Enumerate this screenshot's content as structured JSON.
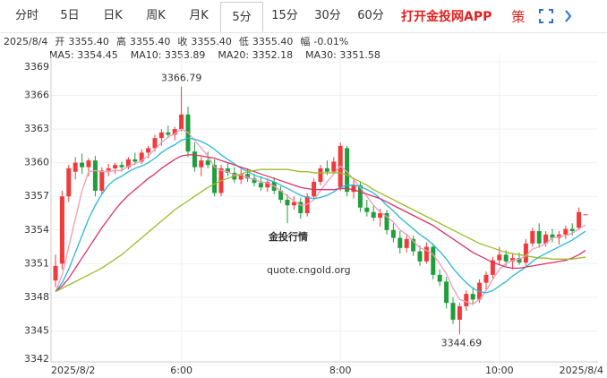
{
  "tabs": [
    "分时",
    "5日",
    "日K",
    "周K",
    "月K",
    "5分",
    "15分",
    "30分",
    "60分"
  ],
  "selected_tab": 5,
  "app_link": "打开金投网APP",
  "strategy": "策",
  "info": {
    "date": "2025/8/4",
    "items": [
      {
        "label": "开",
        "value": "3355.40"
      },
      {
        "label": "高",
        "value": "3355.40"
      },
      {
        "label": "收",
        "value": "3355.40"
      },
      {
        "label": "低",
        "value": "3355.40"
      },
      {
        "label": "幅",
        "value": "-0.01%"
      }
    ]
  },
  "watermark": {
    "brand": "金投行情",
    "url": "quote.cngold.org"
  },
  "chart_data": {
    "type": "candlestick",
    "categories": [
      "2025/8/2",
      null,
      null,
      null,
      null,
      null,
      null,
      null,
      null,
      null,
      null,
      null,
      null,
      null,
      null,
      null,
      null,
      null,
      null,
      "6:00",
      null,
      null,
      null,
      null,
      null,
      null,
      null,
      null,
      null,
      null,
      null,
      null,
      null,
      null,
      null,
      null,
      null,
      null,
      null,
      null,
      null,
      null,
      null,
      "8:00",
      null,
      null,
      null,
      null,
      null,
      null,
      null,
      null,
      null,
      null,
      null,
      null,
      null,
      null,
      null,
      null,
      null,
      null,
      null,
      null,
      null,
      null,
      null,
      "10:00",
      null,
      null,
      null,
      null,
      null,
      null,
      null,
      null,
      null,
      null,
      null,
      null,
      "2025/8/4"
    ],
    "open": [
      3349.5,
      3351,
      3357,
      3359.2,
      3360,
      3359.6,
      3360.2,
      3357.5,
      3359.3,
      3359.5,
      3359.8,
      3359.6,
      3360.3,
      3360.1,
      3360.9,
      3361.3,
      3362.2,
      3362.7,
      3362.5,
      3363,
      3364.3,
      3361,
      3359.6,
      3360.2,
      3359.8,
      3357.3,
      3359.5,
      3359.1,
      3358.5,
      3359,
      3358.6,
      3358.2,
      3357.8,
      3358.3,
      3357.5,
      3356.7,
      3356.2,
      3356.5,
      3355.5,
      3357,
      3358.3,
      3359.5,
      3359.2,
      3357.8,
      3361.3,
      3357.4,
      3358,
      3356,
      3355.6,
      3355.1,
      3355.5,
      3354,
      3353.3,
      3352.4,
      3353.2,
      3352.1,
      3351.2,
      3352.5,
      3350,
      3349.4,
      3347.5,
      3346,
      3347.2,
      3348.3,
      3347.8,
      3349.3,
      3350,
      3351.3,
      3351.8,
      3351.2,
      3351.5,
      3351.1,
      3352.8,
      3353.9,
      3352.8,
      3353.6,
      3353.3,
      3353.6,
      3354.1,
      3354.2,
      3355.4
    ],
    "high": [
      3351.8,
      3357.5,
      3359.8,
      3360.5,
      3360.8,
      3360.4,
      3360.6,
      3359.6,
      3359.9,
      3360,
      3360.1,
      3360.5,
      3360.9,
      3361.2,
      3361.5,
      3362.5,
      3363,
      3363.3,
      3363.2,
      3366.79,
      3365,
      3361.8,
      3360.5,
      3361,
      3360.3,
      3359.8,
      3360,
      3359.6,
      3359.4,
      3359.5,
      3359,
      3358.8,
      3358.6,
      3358.7,
      3357.9,
      3357.2,
      3357,
      3356.9,
      3357.3,
      3358.6,
      3359.8,
      3360.2,
      3360.5,
      3361.8,
      3361.5,
      3358.5,
      3358.3,
      3356.7,
      3356.2,
      3355.9,
      3355.8,
      3354.6,
      3353.9,
      3353.6,
      3353.5,
      3352.6,
      3352.9,
      3352.8,
      3350.5,
      3349.8,
      3348,
      3347.5,
      3348.6,
      3348.9,
      3349.6,
      3350.3,
      3351.6,
      3352.5,
      3352.2,
      3351.9,
      3352,
      3353.2,
      3354.2,
      3354.6,
      3353.9,
      3354.1,
      3353.9,
      3354.4,
      3354.6,
      3356,
      3355.4
    ],
    "low": [
      3348.9,
      3350.5,
      3356.5,
      3358.5,
      3359,
      3358.8,
      3357,
      3357.2,
      3358.8,
      3359,
      3359.2,
      3359.4,
      3359.8,
      3359.9,
      3360.4,
      3361,
      3361.5,
      3362.2,
      3362,
      3362.8,
      3360.5,
      3359.2,
      3358.8,
      3359.5,
      3357,
      3357,
      3358.8,
      3358.2,
      3358.1,
      3358.3,
      3357.9,
      3357.5,
      3357.4,
      3357.2,
      3356.4,
      3354.6,
      3355.8,
      3355,
      3355.2,
      3356.8,
      3358,
      3358.9,
      3359,
      3357.5,
      3357,
      3356.8,
      3355.6,
      3355.2,
      3354.8,
      3354.3,
      3353.6,
      3352.9,
      3351.9,
      3352,
      3351.7,
      3350.8,
      3351,
      3349.6,
      3349,
      3347,
      3345.6,
      3344.69,
      3346.8,
      3347.3,
      3347.5,
      3348.6,
      3349.7,
      3350.9,
      3350.8,
      3350.5,
      3350.9,
      3350.8,
      3352.5,
      3352.4,
      3352.5,
      3352.9,
      3352.7,
      3353.2,
      3353.5,
      3354,
      3355.4
    ],
    "close": [
      3350.8,
      3357,
      3359.5,
      3360,
      3359.6,
      3360.2,
      3357.5,
      3359.3,
      3359.5,
      3359.8,
      3359.6,
      3360.3,
      3360.1,
      3360.9,
      3361.3,
      3362.2,
      3362.7,
      3362.5,
      3363,
      3364.3,
      3361,
      3359.6,
      3360.2,
      3359.8,
      3357.3,
      3359.5,
      3359.1,
      3358.5,
      3359,
      3358.6,
      3358.2,
      3357.8,
      3358.3,
      3357.5,
      3356.7,
      3356.2,
      3356.5,
      3355.5,
      3357,
      3358.3,
      3359.5,
      3359.2,
      3360.1,
      3361.5,
      3357.4,
      3358,
      3356,
      3355.6,
      3355.1,
      3355.5,
      3354,
      3353.3,
      3352.4,
      3353.2,
      3352.1,
      3351.2,
      3352.5,
      3350,
      3349.4,
      3347.5,
      3346,
      3347.2,
      3348.3,
      3347.8,
      3349.3,
      3350,
      3351.3,
      3351.8,
      3351.2,
      3351.5,
      3351.1,
      3352.8,
      3353.9,
      3352.8,
      3353.6,
      3353.3,
      3353.6,
      3354.1,
      3353.9,
      3355.6,
      3355.4
    ],
    "up_color": "#ef3b3b",
    "down_color": "#1f9e3c",
    "series": [
      {
        "name": "MA5: 3354.45",
        "color": "#f29bb8",
        "values": [
          3348.5,
          3350,
          3352.5,
          3355,
          3357.5,
          3359.2,
          3359.3,
          3359.2,
          3359.2,
          3359.3,
          3359.3,
          3359.7,
          3359.9,
          3360.2,
          3360.6,
          3361.2,
          3361.8,
          3362.3,
          3362.6,
          3363,
          3362.7,
          3362,
          3361.3,
          3360.6,
          3359.6,
          3359.3,
          3359.2,
          3358.9,
          3358.9,
          3358.7,
          3358.5,
          3358.3,
          3358.2,
          3357.9,
          3357.5,
          3357,
          3356.6,
          3356.2,
          3356.3,
          3356.7,
          3357.5,
          3358.3,
          3359,
          3359.7,
          3359.2,
          3358.5,
          3357.8,
          3357,
          3356.2,
          3355.6,
          3355.2,
          3354.7,
          3354,
          3353.6,
          3353,
          3352.4,
          3352.2,
          3351.8,
          3351,
          3350.1,
          3348.8,
          3347.8,
          3347.6,
          3347.4,
          3347.8,
          3348.6,
          3349.6,
          3350.5,
          3351,
          3351.3,
          3351.4,
          3351.7,
          3352.3,
          3352.5,
          3352.8,
          3353.3,
          3353.4,
          3353.5,
          3353.7,
          3354.1,
          3354.45
        ]
      },
      {
        "name": "MA10: 3353.89",
        "color": "#29b6d8",
        "values": [
          3348.5,
          3349.3,
          3350.5,
          3352,
          3353.5,
          3355,
          3356.2,
          3357.2,
          3358,
          3358.5,
          3358.8,
          3359.2,
          3359.5,
          3359.7,
          3360,
          3360.4,
          3360.9,
          3361.3,
          3361.6,
          3362,
          3362.2,
          3362.1,
          3361.9,
          3361.6,
          3361.2,
          3360.7,
          3360.3,
          3359.9,
          3359.5,
          3359.2,
          3358.9,
          3358.7,
          3358.5,
          3358.3,
          3358,
          3357.7,
          3357.4,
          3357.1,
          3356.9,
          3356.8,
          3356.9,
          3357.1,
          3357.4,
          3357.8,
          3358,
          3358,
          3357.9,
          3357.6,
          3357.3,
          3356.8,
          3356.2,
          3355.7,
          3355.1,
          3354.6,
          3354.1,
          3353.6,
          3353.2,
          3352.7,
          3352.1,
          3351.4,
          3350.6,
          3349.9,
          3349.3,
          3348.8,
          3348.5,
          3348.4,
          3348.6,
          3349,
          3349.4,
          3349.9,
          3350.3,
          3350.7,
          3351.2,
          3351.6,
          3351.9,
          3352.2,
          3352.5,
          3352.8,
          3353.1,
          3353.5,
          3353.89
        ]
      },
      {
        "name": "MA20: 3352.18",
        "color": "#d8336a",
        "values": [
          3348.5,
          3349,
          3349.7,
          3350.6,
          3351.5,
          3352.4,
          3353.3,
          3354.2,
          3355,
          3355.8,
          3356.5,
          3357.1,
          3357.6,
          3358.1,
          3358.6,
          3359,
          3359.5,
          3359.9,
          3360.3,
          3360.6,
          3360.7,
          3360.7,
          3360.6,
          3360.5,
          3360.4,
          3360.2,
          3360,
          3359.8,
          3359.6,
          3359.4,
          3359.2,
          3359,
          3358.8,
          3358.6,
          3358.4,
          3358.2,
          3358,
          3357.8,
          3357.7,
          3357.6,
          3357.6,
          3357.6,
          3357.6,
          3357.7,
          3357.7,
          3357.6,
          3357.4,
          3357.2,
          3357,
          3356.8,
          3356.5,
          3356.2,
          3355.9,
          3355.6,
          3355.3,
          3355,
          3354.7,
          3354.4,
          3354,
          3353.6,
          3353.2,
          3352.8,
          3352.4,
          3352,
          3351.7,
          3351.4,
          3351.1,
          3350.9,
          3350.7,
          3350.6,
          3350.6,
          3350.7,
          3350.8,
          3350.9,
          3351,
          3351.1,
          3351.2,
          3351.3,
          3351.5,
          3351.8,
          3352.18
        ]
      },
      {
        "name": "MA30: 3351.58",
        "color": "#9dbb2c",
        "values": [
          3348.5,
          3348.8,
          3349.1,
          3349.4,
          3349.7,
          3350,
          3350.3,
          3350.6,
          3351,
          3351.4,
          3351.8,
          3352.3,
          3352.8,
          3353.3,
          3353.8,
          3354.3,
          3354.8,
          3355.3,
          3355.8,
          3356.2,
          3356.6,
          3357,
          3357.4,
          3357.8,
          3358.1,
          3358.4,
          3358.6,
          3358.8,
          3359,
          3359.2,
          3359.3,
          3359.4,
          3359.4,
          3359.4,
          3359.4,
          3359.4,
          3359.3,
          3359.2,
          3359.2,
          3359.1,
          3359.1,
          3359.1,
          3359.1,
          3359.1,
          3358.9,
          3358.6,
          3358.3,
          3358,
          3357.6,
          3357.3,
          3357,
          3356.7,
          3356.4,
          3356.1,
          3355.8,
          3355.5,
          3355.2,
          3354.9,
          3354.6,
          3354.3,
          3354,
          3353.7,
          3353.4,
          3353.1,
          3352.8,
          3352.6,
          3352.4,
          3352.2,
          3352,
          3351.9,
          3351.8,
          3351.7,
          3351.6,
          3351.5,
          3351.5,
          3351.4,
          3351.4,
          3351.4,
          3351.4,
          3351.5,
          3351.58
        ]
      }
    ],
    "annotations": [
      "3366.79",
      "3344.69"
    ],
    "ylim": [
      3342,
      3369
    ],
    "yticks": [
      3369,
      3366,
      3363,
      3360,
      3357,
      3354,
      3351,
      3348,
      3345,
      3342
    ],
    "grid": true
  }
}
